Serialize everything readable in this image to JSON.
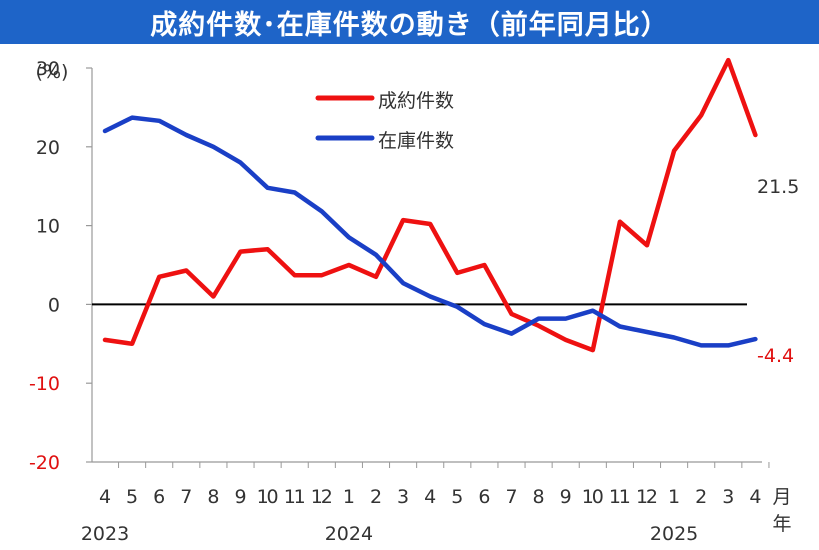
{
  "title": "成約件数･在庫件数の動き（前年同月比）",
  "chart_data": {
    "type": "line",
    "title": "成約件数･在庫件数の動き（前年同月比）",
    "ylabel": "(%)",
    "y_unit_label": "(%)",
    "x_unit_month": "月",
    "x_unit_year": "年",
    "ylim": [
      -20,
      30
    ],
    "yticks": [
      30,
      20,
      10,
      0,
      -10,
      -20
    ],
    "categories": [
      "4",
      "5",
      "6",
      "7",
      "8",
      "9",
      "10",
      "11",
      "12",
      "1",
      "2",
      "3",
      "4",
      "5",
      "6",
      "7",
      "8",
      "9",
      "10",
      "11",
      "12",
      "1",
      "2",
      "3",
      "4"
    ],
    "year_labels": [
      {
        "label": "2023",
        "index": 0
      },
      {
        "label": "2024",
        "index": 9
      },
      {
        "label": "2025",
        "index": 21
      }
    ],
    "legend_placement": "top-center",
    "series": [
      {
        "name": "成約件数",
        "color": "#ee1111",
        "values": [
          -4.5,
          -5.0,
          3.5,
          4.3,
          1.0,
          6.7,
          7.0,
          3.7,
          3.7,
          5.0,
          3.5,
          10.7,
          10.2,
          4.0,
          5.0,
          -1.2,
          -2.7,
          -4.5,
          -5.8,
          10.5,
          7.5,
          19.5,
          24.0,
          31.0,
          21.5
        ],
        "end_label": "21.5"
      },
      {
        "name": "在庫件数",
        "color": "#1a3fc6",
        "values": [
          22.0,
          23.7,
          23.3,
          21.5,
          20.0,
          18.0,
          14.8,
          14.2,
          11.8,
          8.5,
          6.3,
          2.7,
          1.0,
          -0.3,
          -2.5,
          -3.7,
          -1.8,
          -1.8,
          -0.8,
          -2.8,
          -3.5,
          -4.2,
          -5.2,
          -5.2,
          -4.4
        ],
        "end_label": "-4.4"
      }
    ]
  }
}
